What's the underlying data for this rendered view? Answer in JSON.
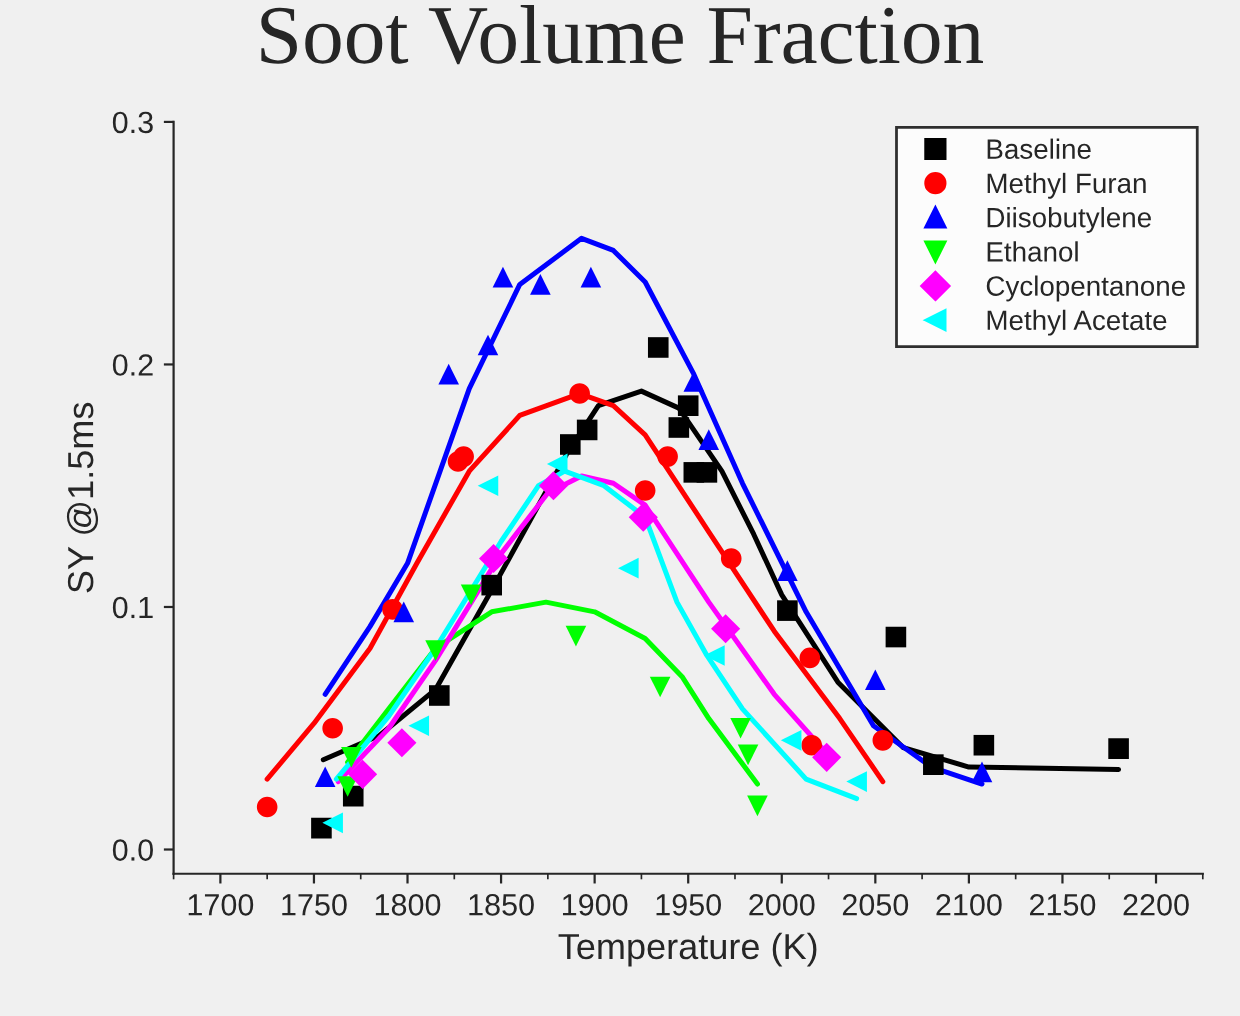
{
  "chart_data": {
    "type": "scatter",
    "title": "Soot Volume Fraction",
    "xlabel": "Temperature (K)",
    "ylabel": "SY @1.5ms",
    "xlim": [
      1675,
      2225
    ],
    "xticks": [
      1700,
      1750,
      1800,
      1850,
      1900,
      1950,
      2000,
      2050,
      2100,
      2150,
      2200
    ],
    "ylim": [
      -0.01,
      0.3
    ],
    "yticks": [
      {
        "value": 0.0,
        "label": "0.0"
      },
      0.1,
      0.2,
      0.3
    ],
    "grid": false,
    "legend": "top right",
    "series": [
      {
        "name": "Baseline",
        "color": "#000000",
        "marker": "square",
        "x": [
          1754,
          1771,
          1817,
          1845,
          1887,
          1896,
          1934,
          1950,
          1945,
          1953,
          1960,
          2003,
          2061,
          2081,
          2108,
          2180
        ],
        "values": [
          0.0088,
          0.022,
          0.0635,
          0.109,
          0.167,
          0.173,
          0.207,
          0.183,
          0.174,
          0.1555,
          0.1555,
          0.0985,
          0.0876,
          0.035,
          0.043,
          0.0416
        ]
      },
      {
        "name": "Methyl Furan",
        "color": "#ff0000",
        "marker": "circle",
        "x": [
          1725,
          1760,
          1792,
          1827,
          1830,
          1892,
          1939,
          1927,
          1973,
          2015,
          2016,
          2054
        ],
        "values": [
          0.0175,
          0.05,
          0.099,
          0.16,
          0.162,
          0.188,
          0.162,
          0.148,
          0.12,
          0.079,
          0.043,
          0.045
        ]
      },
      {
        "name": "Diisobutylene",
        "color": "#0000ff",
        "marker": "triangle",
        "x": [
          1756,
          1798,
          1822,
          1843,
          1851,
          1871,
          1898,
          1953,
          1961,
          2003,
          2050,
          2107
        ],
        "values": [
          0.03,
          0.098,
          0.196,
          0.208,
          0.236,
          0.233,
          0.236,
          0.193,
          0.169,
          0.115,
          0.07,
          0.032
        ]
      },
      {
        "name": "Ethanol",
        "color": "#00ff00",
        "marker": "triangle-down",
        "x": [
          1768,
          1770,
          1815,
          1834,
          1890,
          1935,
          1978,
          1982,
          1987
        ],
        "values": [
          0.026,
          0.038,
          0.082,
          0.105,
          0.088,
          0.067,
          0.05,
          0.039,
          0.018
        ]
      },
      {
        "name": "Cyclopentanone",
        "color": "#ff00ff",
        "marker": "diamond",
        "x": [
          1776,
          1797,
          1846,
          1878,
          1926,
          1970,
          2024
        ],
        "values": [
          0.031,
          0.044,
          0.12,
          0.15,
          0.137,
          0.091,
          0.038
        ]
      },
      {
        "name": "Methyl Acetate",
        "color": "#00ffff",
        "marker": "triangle-left",
        "x": [
          1760,
          1806,
          1843,
          1880,
          1918,
          1964,
          2005,
          2040
        ],
        "values": [
          0.011,
          0.051,
          0.15,
          0.159,
          0.116,
          0.08,
          0.045,
          0.028
        ]
      },
      {
        "type": "line",
        "color": "#000000",
        "marker": "none",
        "x": [
          1755,
          1785,
          1815,
          1845,
          1870,
          1885,
          1902,
          1925,
          1945,
          1968,
          1985,
          2000,
          2030,
          2065,
          2100,
          2180
        ],
        "values": [
          0.037,
          0.047,
          0.066,
          0.107,
          0.142,
          0.163,
          0.183,
          0.189,
          0.182,
          0.156,
          0.13,
          0.105,
          0.069,
          0.042,
          0.034,
          0.033
        ]
      },
      {
        "type": "line",
        "color": "#ff0000",
        "marker": "none",
        "x": [
          1725,
          1750,
          1780,
          1805,
          1833,
          1860,
          1892,
          1910,
          1927,
          1961,
          1996,
          2031,
          2054
        ],
        "values": [
          0.029,
          0.052,
          0.083,
          0.118,
          0.156,
          0.179,
          0.188,
          0.183,
          0.171,
          0.131,
          0.09,
          0.054,
          0.028
        ]
      },
      {
        "type": "line",
        "color": "#0000ff",
        "marker": "none",
        "x": [
          1756,
          1780,
          1800,
          1833,
          1860,
          1893,
          1910,
          1927,
          1953,
          1979,
          2013,
          2049,
          2080,
          2107
        ],
        "values": [
          0.064,
          0.092,
          0.118,
          0.19,
          0.233,
          0.252,
          0.247,
          0.234,
          0.196,
          0.151,
          0.098,
          0.051,
          0.034,
          0.027
        ]
      },
      {
        "type": "line",
        "color": "#00ff00",
        "marker": "none",
        "x": [
          1768,
          1790,
          1815,
          1845,
          1874,
          1900,
          1927,
          1947,
          1961,
          1987
        ],
        "values": [
          0.036,
          0.058,
          0.083,
          0.098,
          0.102,
          0.098,
          0.087,
          0.071,
          0.054,
          0.027
        ]
      },
      {
        "type": "line",
        "color": "#ff00ff",
        "marker": "none",
        "x": [
          1763,
          1790,
          1815,
          1850,
          1875,
          1893,
          1910,
          1927,
          1961,
          1996,
          2027
        ],
        "values": [
          0.028,
          0.05,
          0.078,
          0.122,
          0.147,
          0.154,
          0.151,
          0.142,
          0.102,
          0.064,
          0.037
        ]
      },
      {
        "type": "line",
        "color": "#00ffff",
        "marker": "none",
        "x": [
          1762,
          1790,
          1815,
          1850,
          1870,
          1884,
          1905,
          1927,
          1944,
          1960,
          1979,
          2013,
          2040
        ],
        "values": [
          0.029,
          0.055,
          0.083,
          0.127,
          0.15,
          0.156,
          0.15,
          0.137,
          0.102,
          0.08,
          0.058,
          0.029,
          0.021
        ]
      }
    ]
  }
}
